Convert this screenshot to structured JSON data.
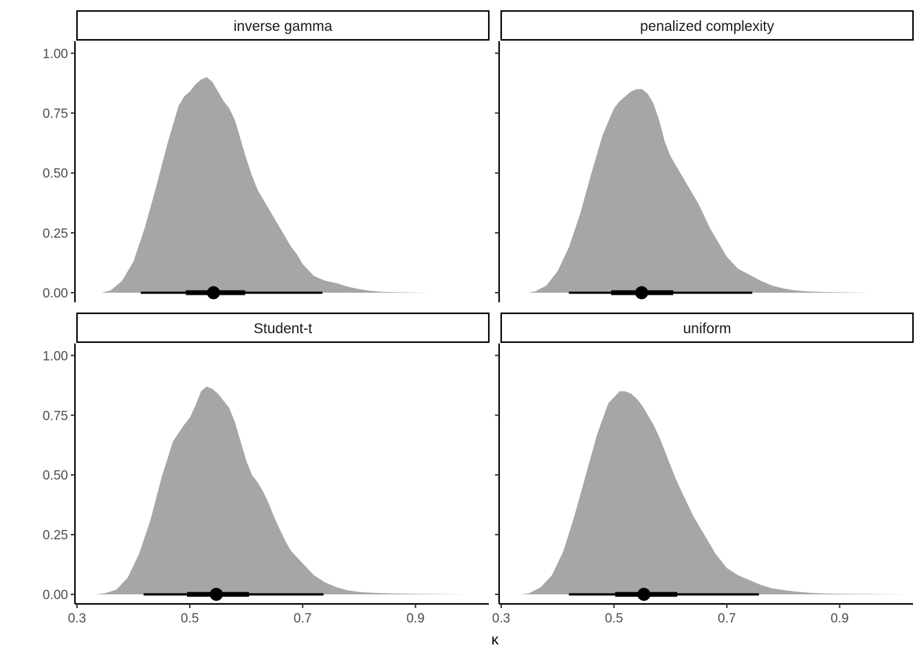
{
  "chart_data": {
    "type": "area",
    "xlabel": "κ",
    "ylabel": "",
    "xlim": [
      0.3,
      1.03
    ],
    "ylim": [
      -0.04,
      1.05
    ],
    "x_ticks": [
      0.3,
      0.5,
      0.7,
      0.9
    ],
    "x_tick_labels": [
      "0.3",
      "0.5",
      "0.7",
      "0.9"
    ],
    "y_ticks": [
      0.0,
      0.25,
      0.5,
      0.75,
      1.0
    ],
    "y_tick_labels": [
      "0.00",
      "0.25",
      "0.50",
      "0.75",
      "1.00"
    ],
    "fill_color": "#a6a6a6",
    "point_color": "#000000",
    "grid": false,
    "panels": [
      {
        "label": "inverse gamma",
        "density": {
          "x": [
            0.343,
            0.36,
            0.38,
            0.4,
            0.42,
            0.44,
            0.46,
            0.48,
            0.49,
            0.5,
            0.51,
            0.52,
            0.53,
            0.54,
            0.55,
            0.56,
            0.57,
            0.58,
            0.59,
            0.6,
            0.61,
            0.62,
            0.63,
            0.64,
            0.65,
            0.66,
            0.67,
            0.68,
            0.69,
            0.7,
            0.72,
            0.74,
            0.76,
            0.78,
            0.8,
            0.82,
            0.84,
            0.87,
            0.9,
            0.928
          ],
          "y": [
            0.0,
            0.01,
            0.05,
            0.13,
            0.27,
            0.44,
            0.62,
            0.78,
            0.82,
            0.84,
            0.87,
            0.89,
            0.9,
            0.88,
            0.84,
            0.8,
            0.77,
            0.72,
            0.64,
            0.56,
            0.49,
            0.43,
            0.39,
            0.35,
            0.31,
            0.27,
            0.23,
            0.19,
            0.16,
            0.12,
            0.07,
            0.05,
            0.04,
            0.025,
            0.015,
            0.008,
            0.004,
            0.002,
            0.001,
            0.0
          ]
        },
        "point": 0.542,
        "interval_66": [
          0.493,
          0.598
        ],
        "interval_95": [
          0.413,
          0.735
        ]
      },
      {
        "label": "penalized complexity",
        "density": {
          "x": [
            0.347,
            0.36,
            0.38,
            0.4,
            0.42,
            0.44,
            0.46,
            0.48,
            0.5,
            0.51,
            0.52,
            0.53,
            0.54,
            0.55,
            0.56,
            0.57,
            0.58,
            0.59,
            0.6,
            0.61,
            0.62,
            0.63,
            0.64,
            0.65,
            0.66,
            0.67,
            0.68,
            0.69,
            0.7,
            0.72,
            0.74,
            0.76,
            0.78,
            0.8,
            0.82,
            0.84,
            0.87,
            0.9,
            0.93,
            0.955
          ],
          "y": [
            0.0,
            0.005,
            0.03,
            0.09,
            0.19,
            0.33,
            0.5,
            0.66,
            0.77,
            0.8,
            0.82,
            0.84,
            0.85,
            0.85,
            0.83,
            0.79,
            0.72,
            0.63,
            0.57,
            0.53,
            0.49,
            0.45,
            0.41,
            0.37,
            0.32,
            0.27,
            0.23,
            0.19,
            0.15,
            0.1,
            0.075,
            0.05,
            0.03,
            0.018,
            0.01,
            0.006,
            0.003,
            0.002,
            0.001,
            0.0
          ]
        },
        "point": 0.549,
        "interval_66": [
          0.495,
          0.605
        ],
        "interval_95": [
          0.42,
          0.745
        ]
      },
      {
        "label": "Student-t",
        "density": {
          "x": [
            0.333,
            0.35,
            0.37,
            0.39,
            0.41,
            0.43,
            0.45,
            0.47,
            0.49,
            0.5,
            0.51,
            0.52,
            0.53,
            0.54,
            0.55,
            0.56,
            0.57,
            0.58,
            0.59,
            0.6,
            0.61,
            0.62,
            0.63,
            0.64,
            0.65,
            0.66,
            0.67,
            0.68,
            0.69,
            0.7,
            0.72,
            0.74,
            0.76,
            0.78,
            0.8,
            0.83,
            0.86,
            0.9,
            0.95,
            0.99
          ],
          "y": [
            0.0,
            0.005,
            0.02,
            0.07,
            0.17,
            0.31,
            0.49,
            0.64,
            0.71,
            0.74,
            0.79,
            0.85,
            0.87,
            0.86,
            0.84,
            0.81,
            0.78,
            0.72,
            0.64,
            0.56,
            0.5,
            0.47,
            0.43,
            0.38,
            0.32,
            0.27,
            0.22,
            0.18,
            0.155,
            0.13,
            0.08,
            0.05,
            0.03,
            0.017,
            0.01,
            0.006,
            0.004,
            0.002,
            0.001,
            0.0
          ]
        },
        "point": 0.547,
        "interval_66": [
          0.495,
          0.605
        ],
        "interval_95": [
          0.418,
          0.737
        ]
      },
      {
        "label": "uniform",
        "density": {
          "x": [
            0.334,
            0.35,
            0.37,
            0.39,
            0.41,
            0.43,
            0.45,
            0.47,
            0.49,
            0.51,
            0.52,
            0.53,
            0.54,
            0.55,
            0.56,
            0.57,
            0.58,
            0.59,
            0.6,
            0.61,
            0.62,
            0.63,
            0.64,
            0.65,
            0.66,
            0.67,
            0.68,
            0.69,
            0.7,
            0.72,
            0.74,
            0.76,
            0.78,
            0.8,
            0.82,
            0.85,
            0.88,
            0.92,
            0.97,
            1.02
          ],
          "y": [
            0.0,
            0.005,
            0.03,
            0.08,
            0.18,
            0.33,
            0.5,
            0.67,
            0.8,
            0.85,
            0.85,
            0.84,
            0.82,
            0.79,
            0.75,
            0.71,
            0.66,
            0.6,
            0.54,
            0.48,
            0.43,
            0.38,
            0.33,
            0.29,
            0.25,
            0.21,
            0.17,
            0.14,
            0.11,
            0.08,
            0.06,
            0.04,
            0.025,
            0.018,
            0.012,
            0.006,
            0.003,
            0.002,
            0.001,
            0.0
          ]
        },
        "point": 0.553,
        "interval_66": [
          0.502,
          0.612
        ],
        "interval_95": [
          0.42,
          0.757
        ]
      }
    ]
  }
}
